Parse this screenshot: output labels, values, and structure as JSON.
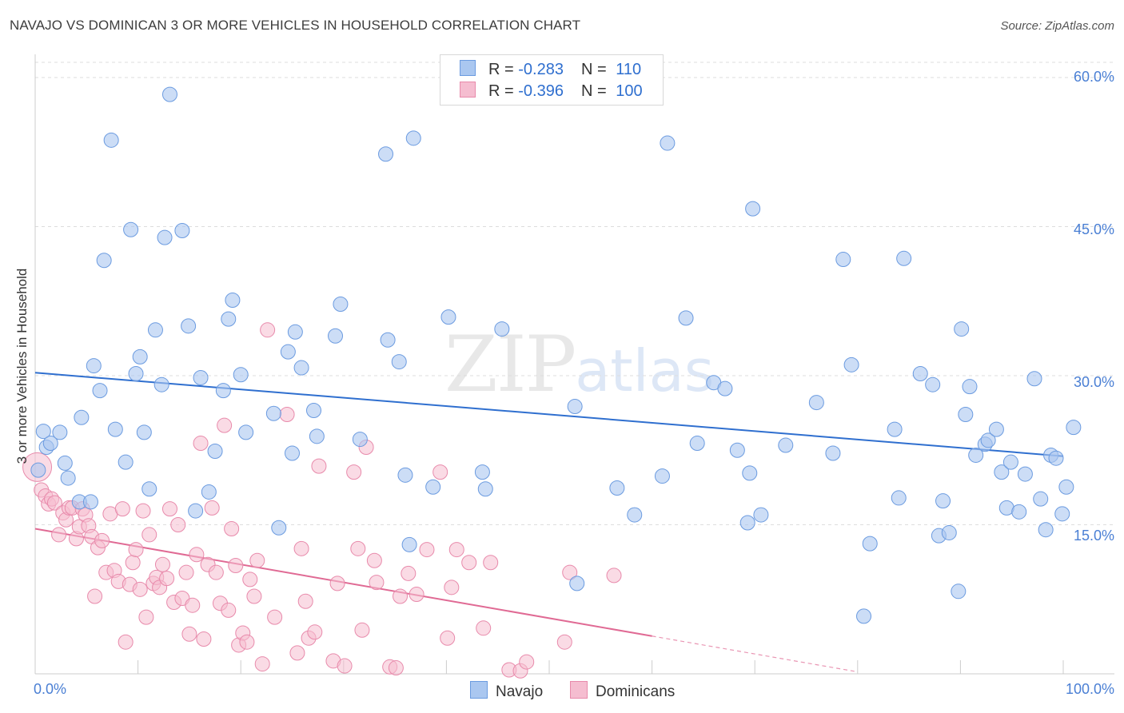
{
  "title": "NAVAJO VS DOMINICAN 3 OR MORE VEHICLES IN HOUSEHOLD CORRELATION CHART",
  "source": "Source: ZipAtlas.com",
  "watermark": {
    "zip": "ZIP",
    "atlas": "atlas"
  },
  "legend": {
    "navajo": {
      "r_label": "R = ",
      "r_value": "-0.283",
      "n_label": "N = ",
      "n_value": "110"
    },
    "dominicans": {
      "r_label": "R = ",
      "r_value": "-0.396",
      "n_label": "N = ",
      "n_value": "100"
    }
  },
  "bottom_legend": {
    "navajo": "Navajo",
    "dominicans": "Dominicans"
  },
  "colors": {
    "navajo_fill": "#aac7f0",
    "navajo_stroke": "#6b9be0",
    "navajo_line": "#2f6fcf",
    "dominican_fill": "#f5bdd0",
    "dominican_stroke": "#e88aab",
    "dominican_line": "#e06a94",
    "grid": "#dddddd",
    "tick_text": "#4a7fd4"
  },
  "chart_data": {
    "type": "scatter",
    "title": "NAVAJO VS DOMINICAN 3 OR MORE VEHICLES IN HOUSEHOLD CORRELATION CHART",
    "xlabel": "",
    "ylabel": "3 or more Vehicles in Household",
    "xlim": [
      0,
      100
    ],
    "ylim": [
      0,
      60
    ],
    "x_tick_labels": [
      "0.0%",
      "100.0%"
    ],
    "y_ticks": [
      15,
      30,
      45,
      60
    ],
    "y_tick_labels": [
      "15.0%",
      "30.0%",
      "45.0%",
      "60.0%"
    ],
    "grid": true,
    "series": [
      {
        "name": "Navajo",
        "r": -0.283,
        "n": 110,
        "trend": {
          "x0": 0,
          "y0": 30.3,
          "x1": 100,
          "y1": 21.9
        },
        "points": [
          [
            0.3,
            20.5
          ],
          [
            0.8,
            24.4
          ],
          [
            1.1,
            22.8
          ],
          [
            1.5,
            23.2
          ],
          [
            2.4,
            24.3
          ],
          [
            2.9,
            21.2
          ],
          [
            3.2,
            19.7
          ],
          [
            4.3,
            17.3
          ],
          [
            4.5,
            25.8
          ],
          [
            5.4,
            17.3
          ],
          [
            5.7,
            31.0
          ],
          [
            6.3,
            28.5
          ],
          [
            6.7,
            41.6
          ],
          [
            7.4,
            53.7
          ],
          [
            7.8,
            24.6
          ],
          [
            8.8,
            21.3
          ],
          [
            9.3,
            44.7
          ],
          [
            9.8,
            30.2
          ],
          [
            10.2,
            31.9
          ],
          [
            10.6,
            24.3
          ],
          [
            11.1,
            18.6
          ],
          [
            11.7,
            34.6
          ],
          [
            12.3,
            29.1
          ],
          [
            12.6,
            43.9
          ],
          [
            13.1,
            58.3
          ],
          [
            14.3,
            44.6
          ],
          [
            14.9,
            35.0
          ],
          [
            15.6,
            16.4
          ],
          [
            16.1,
            29.8
          ],
          [
            16.9,
            18.3
          ],
          [
            17.5,
            22.4
          ],
          [
            18.3,
            28.5
          ],
          [
            18.8,
            35.7
          ],
          [
            19.2,
            37.6
          ],
          [
            20.0,
            30.1
          ],
          [
            20.5,
            24.3
          ],
          [
            23.2,
            26.2
          ],
          [
            23.7,
            14.7
          ],
          [
            24.6,
            32.4
          ],
          [
            25.0,
            22.2
          ],
          [
            25.3,
            34.4
          ],
          [
            25.9,
            30.8
          ],
          [
            27.1,
            26.5
          ],
          [
            27.4,
            23.9
          ],
          [
            29.2,
            34.0
          ],
          [
            29.7,
            37.2
          ],
          [
            31.6,
            23.6
          ],
          [
            34.1,
            52.3
          ],
          [
            34.3,
            33.6
          ],
          [
            35.4,
            31.4
          ],
          [
            36.0,
            20.0
          ],
          [
            36.4,
            13.0
          ],
          [
            36.8,
            53.9
          ],
          [
            38.7,
            18.8
          ],
          [
            40.2,
            35.9
          ],
          [
            43.5,
            20.3
          ],
          [
            43.8,
            18.6
          ],
          [
            45.4,
            34.7
          ],
          [
            52.5,
            26.9
          ],
          [
            52.7,
            9.1
          ],
          [
            56.6,
            18.7
          ],
          [
            58.3,
            16.0
          ],
          [
            61.0,
            19.9
          ],
          [
            61.5,
            53.4
          ],
          [
            63.3,
            35.8
          ],
          [
            64.4,
            23.2
          ],
          [
            66.0,
            29.3
          ],
          [
            67.1,
            28.7
          ],
          [
            68.3,
            22.5
          ],
          [
            69.3,
            15.2
          ],
          [
            69.5,
            20.2
          ],
          [
            69.8,
            46.8
          ],
          [
            70.6,
            16.0
          ],
          [
            73.0,
            23.0
          ],
          [
            76.0,
            27.3
          ],
          [
            77.6,
            22.2
          ],
          [
            78.6,
            41.7
          ],
          [
            79.4,
            31.1
          ],
          [
            80.6,
            5.8
          ],
          [
            81.2,
            13.1
          ],
          [
            83.6,
            24.6
          ],
          [
            84.0,
            17.7
          ],
          [
            84.5,
            41.8
          ],
          [
            86.1,
            30.2
          ],
          [
            87.3,
            29.1
          ],
          [
            87.9,
            13.9
          ],
          [
            88.3,
            17.4
          ],
          [
            88.9,
            14.2
          ],
          [
            89.8,
            8.3
          ],
          [
            90.1,
            34.7
          ],
          [
            90.5,
            26.1
          ],
          [
            90.9,
            28.9
          ],
          [
            91.5,
            22.0
          ],
          [
            92.4,
            23.1
          ],
          [
            92.7,
            23.5
          ],
          [
            93.5,
            24.6
          ],
          [
            94.0,
            20.3
          ],
          [
            94.5,
            16.7
          ],
          [
            94.9,
            21.3
          ],
          [
            95.7,
            16.3
          ],
          [
            96.3,
            20.1
          ],
          [
            97.2,
            29.7
          ],
          [
            97.8,
            17.6
          ],
          [
            98.3,
            14.5
          ],
          [
            98.8,
            22.0
          ],
          [
            99.3,
            21.7
          ],
          [
            99.9,
            16.1
          ],
          [
            100.3,
            18.8
          ],
          [
            101.0,
            24.8
          ]
        ]
      },
      {
        "name": "Dominicans",
        "r": -0.396,
        "n": 100,
        "trend": {
          "x0": 0,
          "y0": 14.6,
          "x1": 60,
          "y1": 3.8
        },
        "trend_dashed": {
          "x0": 60,
          "y0": 3.8,
          "x1": 80,
          "y1": 0.2
        },
        "points": [
          [
            0.2,
            20.8
          ],
          [
            0.6,
            18.5
          ],
          [
            1.0,
            17.9
          ],
          [
            1.3,
            17.1
          ],
          [
            1.6,
            17.6
          ],
          [
            1.9,
            17.2
          ],
          [
            2.3,
            14.0
          ],
          [
            2.7,
            16.2
          ],
          [
            3.0,
            15.5
          ],
          [
            3.3,
            16.7
          ],
          [
            3.6,
            16.7
          ],
          [
            4.0,
            13.6
          ],
          [
            4.3,
            14.8
          ],
          [
            4.6,
            16.6
          ],
          [
            4.9,
            16.0
          ],
          [
            5.2,
            14.9
          ],
          [
            5.5,
            13.8
          ],
          [
            5.8,
            7.8
          ],
          [
            6.1,
            12.7
          ],
          [
            6.5,
            13.4
          ],
          [
            6.9,
            10.2
          ],
          [
            7.3,
            16.1
          ],
          [
            7.7,
            10.4
          ],
          [
            8.1,
            9.3
          ],
          [
            8.5,
            16.6
          ],
          [
            8.8,
            3.2
          ],
          [
            9.2,
            9.0
          ],
          [
            9.5,
            11.2
          ],
          [
            9.8,
            12.5
          ],
          [
            10.2,
            8.5
          ],
          [
            10.5,
            16.4
          ],
          [
            10.8,
            5.7
          ],
          [
            11.1,
            14.0
          ],
          [
            11.5,
            9.1
          ],
          [
            11.8,
            9.7
          ],
          [
            12.1,
            8.7
          ],
          [
            12.4,
            11.0
          ],
          [
            12.8,
            9.6
          ],
          [
            13.1,
            16.6
          ],
          [
            13.5,
            7.2
          ],
          [
            13.9,
            15.0
          ],
          [
            14.3,
            7.6
          ],
          [
            14.7,
            10.2
          ],
          [
            15.0,
            4.0
          ],
          [
            15.3,
            6.9
          ],
          [
            15.7,
            12.0
          ],
          [
            16.1,
            23.2
          ],
          [
            16.4,
            3.5
          ],
          [
            16.8,
            11.0
          ],
          [
            17.2,
            16.7
          ],
          [
            17.6,
            10.2
          ],
          [
            18.0,
            7.1
          ],
          [
            18.4,
            25.0
          ],
          [
            18.8,
            6.4
          ],
          [
            19.1,
            14.6
          ],
          [
            19.5,
            10.9
          ],
          [
            19.8,
            2.9
          ],
          [
            20.2,
            4.1
          ],
          [
            20.6,
            3.2
          ],
          [
            20.9,
            9.5
          ],
          [
            21.3,
            7.8
          ],
          [
            21.6,
            11.4
          ],
          [
            22.1,
            1.0
          ],
          [
            22.6,
            34.6
          ],
          [
            23.3,
            5.7
          ],
          [
            24.5,
            26.1
          ],
          [
            25.5,
            2.1
          ],
          [
            25.9,
            12.6
          ],
          [
            26.3,
            7.3
          ],
          [
            26.6,
            3.6
          ],
          [
            27.2,
            4.2
          ],
          [
            27.6,
            20.9
          ],
          [
            29.0,
            1.3
          ],
          [
            29.4,
            9.1
          ],
          [
            30.1,
            0.8
          ],
          [
            31.0,
            20.3
          ],
          [
            31.4,
            12.6
          ],
          [
            31.8,
            4.4
          ],
          [
            32.2,
            22.8
          ],
          [
            33.0,
            11.4
          ],
          [
            33.2,
            9.2
          ],
          [
            34.5,
            0.7
          ],
          [
            35.1,
            0.6
          ],
          [
            35.5,
            7.8
          ],
          [
            36.3,
            10.1
          ],
          [
            37.1,
            8.0
          ],
          [
            38.1,
            12.5
          ],
          [
            39.4,
            20.3
          ],
          [
            40.1,
            3.6
          ],
          [
            40.5,
            8.7
          ],
          [
            41.0,
            12.5
          ],
          [
            42.2,
            11.2
          ],
          [
            43.6,
            4.6
          ],
          [
            44.3,
            11.2
          ],
          [
            46.1,
            0.4
          ],
          [
            47.2,
            0.3
          ],
          [
            47.8,
            1.2
          ],
          [
            51.5,
            3.2
          ],
          [
            52.0,
            10.2
          ],
          [
            56.3,
            9.9
          ]
        ]
      }
    ]
  }
}
